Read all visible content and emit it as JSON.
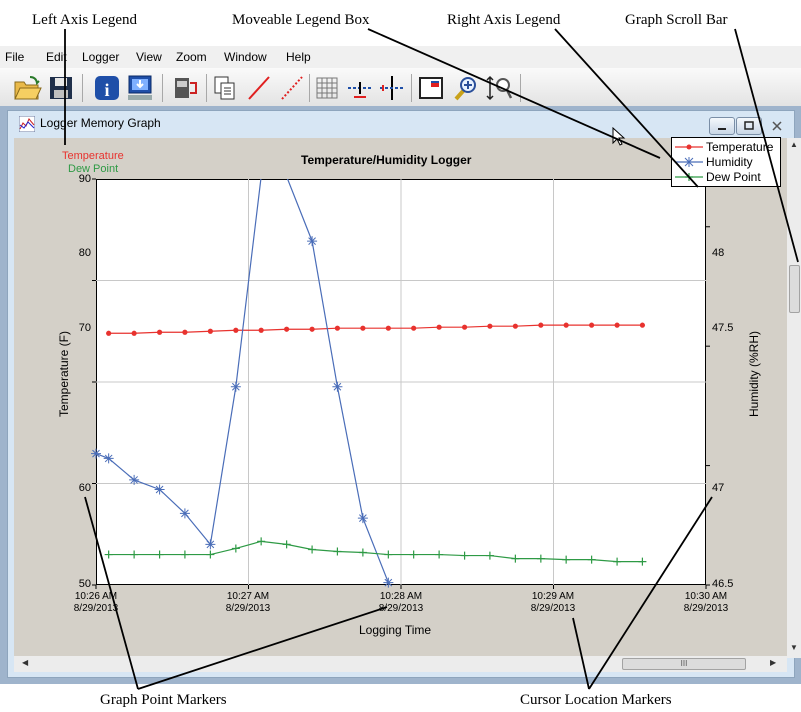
{
  "callouts": {
    "left_axis_legend": "Left Axis Legend",
    "moveable_legend_box": "Moveable Legend Box",
    "right_axis_legend": "Right Axis Legend",
    "graph_scroll_bar": "Graph Scroll Bar",
    "graph_point_markers": "Graph Point Markers",
    "cursor_location_markers": "Cursor Location Markers"
  },
  "menu": [
    "File",
    "Edit",
    "Logger",
    "View",
    "Zoom",
    "Window",
    "Help"
  ],
  "toolbar": {
    "icons": [
      "open-folder-icon",
      "save-disk-icon",
      "info-icon",
      "download-computer-icon",
      "logger-connect-icon",
      "copy-icon",
      "line-icon",
      "dotted-line-icon",
      "grid-icon",
      "horizontal-cursor-icon",
      "vertical-cursor-icon",
      "legend-window-icon",
      "zoom-in-icon",
      "zoom-fit-icon"
    ]
  },
  "window": {
    "title": "Logger Memory Graph",
    "icon": "graph-icon"
  },
  "chart_data": {
    "type": "line",
    "title": "Temperature/Humidity Logger",
    "xlabel": "Logging Time",
    "ylabel_left": "Temperature (F)",
    "ylabel_right": "Humidity (%RH)",
    "left_axis_legend": [
      "Temperature",
      "Dew Point"
    ],
    "ylim_left": [
      50,
      90
    ],
    "yticks_left": [
      "50",
      "60",
      "70",
      "80",
      "90"
    ],
    "ylim_right": [
      46.5,
      48.2
    ],
    "yticks_right": [
      "46.5",
      "47",
      "47.5",
      "48"
    ],
    "xticks": [
      {
        "time": "10:26 AM",
        "date": "8/29/2013"
      },
      {
        "time": "10:27 AM",
        "date": "8/29/2013"
      },
      {
        "time": "10:28 AM",
        "date": "8/29/2013"
      },
      {
        "time": "10:29 AM",
        "date": "8/29/2013"
      },
      {
        "time": "10:30 AM",
        "date": "8/29/2013"
      }
    ],
    "xlim_minutes": [
      0,
      4
    ],
    "series": [
      {
        "name": "Temperature",
        "axis": "left",
        "color": "#e8322e",
        "marker": "dot",
        "x": [
          0.083,
          0.25,
          0.417,
          0.583,
          0.75,
          0.917,
          1.083,
          1.25,
          1.417,
          1.583,
          1.75,
          1.917,
          2.083,
          2.25,
          2.417,
          2.583,
          2.75,
          2.917,
          3.083,
          3.25,
          3.417,
          3.583
        ],
        "y": [
          74.8,
          74.8,
          74.9,
          74.9,
          75.0,
          75.1,
          75.1,
          75.2,
          75.2,
          75.3,
          75.3,
          75.3,
          75.3,
          75.4,
          75.4,
          75.5,
          75.5,
          75.6,
          75.6,
          75.6,
          75.6,
          75.6
        ]
      },
      {
        "name": "Humidity",
        "axis": "right",
        "color": "#4a6db8",
        "marker": "star",
        "x": [
          0.0,
          0.083,
          0.25,
          0.417,
          0.583,
          0.75,
          0.917,
          1.083,
          1.25,
          1.417,
          1.583,
          1.75,
          1.917,
          2.0
        ],
        "y": [
          47.05,
          47.03,
          46.94,
          46.9,
          46.8,
          46.67,
          47.33,
          48.21,
          48.21,
          47.94,
          47.33,
          46.78,
          46.51,
          46.45
        ]
      },
      {
        "name": "Dew Point",
        "axis": "left",
        "color": "#2e9a45",
        "marker": "plus",
        "x": [
          0.083,
          0.25,
          0.417,
          0.583,
          0.75,
          0.917,
          1.083,
          1.25,
          1.417,
          1.583,
          1.75,
          1.917,
          2.083,
          2.25,
          2.417,
          2.583,
          2.75,
          2.917,
          3.083,
          3.25,
          3.417,
          3.583
        ],
        "y": [
          53.0,
          53.0,
          53.0,
          53.0,
          53.0,
          53.6,
          54.3,
          54.0,
          53.5,
          53.3,
          53.2,
          53.0,
          53.0,
          53.0,
          52.9,
          52.9,
          52.6,
          52.6,
          52.5,
          52.5,
          52.3,
          52.3
        ]
      }
    ],
    "legend_entries": [
      "Temperature",
      "Humidity",
      "Dew Point"
    ],
    "grid": true
  },
  "hscroll": {
    "grip": "III"
  }
}
